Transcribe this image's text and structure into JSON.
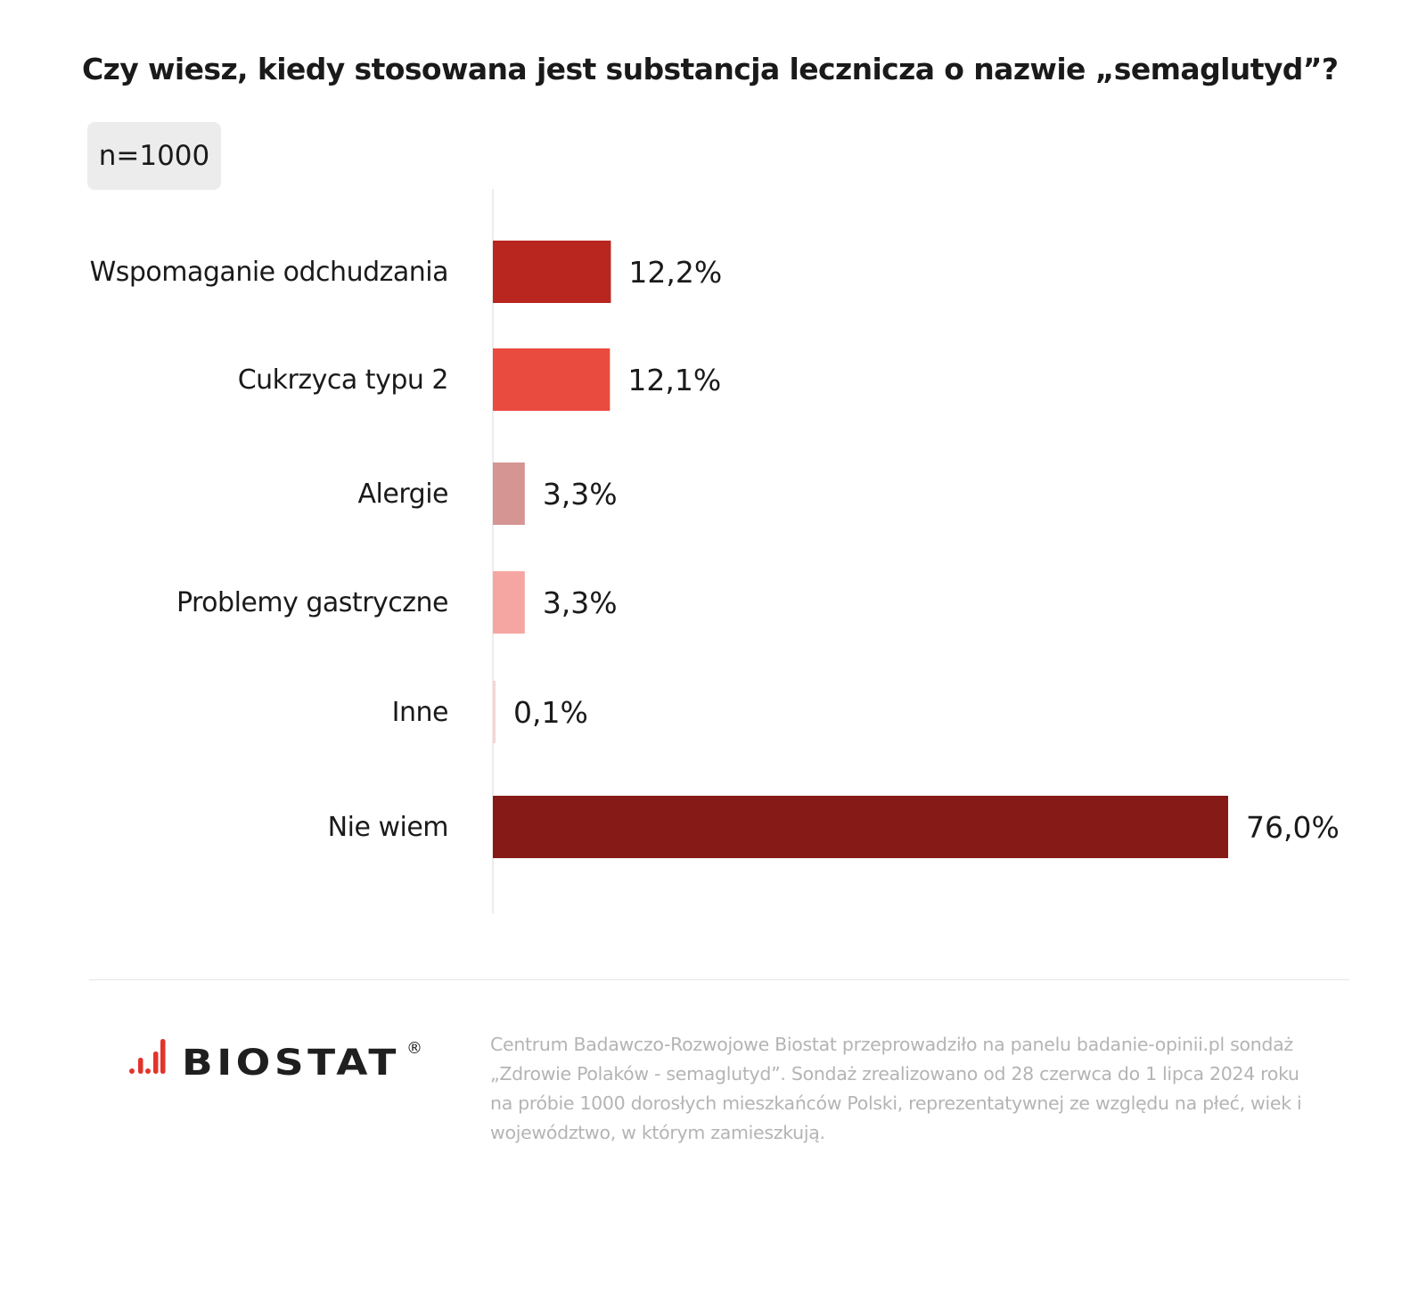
{
  "header": {
    "title": "Czy wiesz, kiedy stosowana jest substancja lecznicza o nazwie „semaglutyd”?",
    "sample": "n=1000"
  },
  "chart_data": {
    "type": "bar",
    "orientation": "horizontal",
    "title": "Czy wiesz, kiedy stosowana jest substancja lecznicza o nazwie „semaglutyd”?",
    "categories": [
      "Wspomaganie odchudzania",
      "Cukrzyca typu 2",
      "Alergie",
      "Problemy gastryczne",
      "Inne",
      "Nie wiem"
    ],
    "values": [
      12.2,
      12.1,
      3.3,
      3.3,
      0.1,
      76.0
    ],
    "value_labels": [
      "12,2%",
      "12,1%",
      "3,3%",
      "3,3%",
      "0,1%",
      "76,0%"
    ],
    "colors": [
      "#b8261f",
      "#e94b3f",
      "#d49593",
      "#f6a6a2",
      "#f7d4d2",
      "#861a16"
    ],
    "unit": "%",
    "xlim": [
      0,
      76
    ],
    "grid": false,
    "legend": "none"
  },
  "footer": {
    "logo_text": "BIOSTAT",
    "logo_mark": "®",
    "logo_color": "#e3342b",
    "note": "Centrum Badawczo-Rozwojowe Biostat przeprowadziło na panelu badanie-opinii.pl sondaż „Zdrowie Polaków - semaglutyd”. Sondaż zrealizowano od 28 czerwca do 1 lipca 2024 roku na próbie 1000 dorosłych mieszkańców Polski, reprezentatywnej ze względu na płeć, wiek i województwo, w którym zamieszkują."
  }
}
